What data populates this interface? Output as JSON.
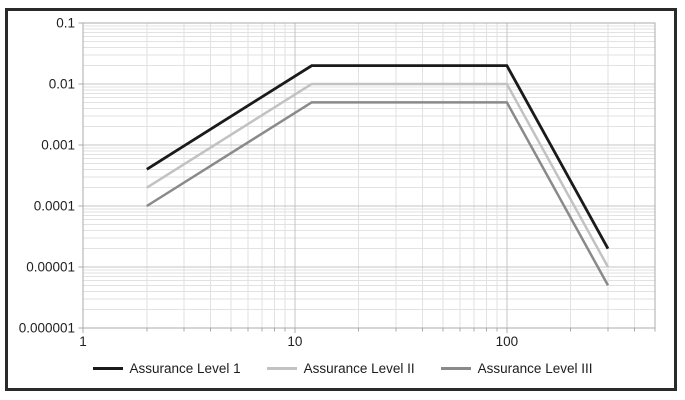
{
  "chart_data": {
    "type": "line",
    "title": "",
    "xlabel": "",
    "ylabel": "",
    "x_scale": "log",
    "y_scale": "log",
    "xlim": [
      1,
      500
    ],
    "ylim": [
      1e-06,
      0.1
    ],
    "x_ticks": [
      1,
      10,
      100
    ],
    "x_tick_labels": [
      "1",
      "10",
      "100"
    ],
    "y_ticks": [
      0.1,
      0.01,
      0.001,
      0.0001,
      1e-05,
      1e-06
    ],
    "y_tick_labels": [
      "0.1",
      "0.01",
      "0.001",
      "0.0001",
      "0.00001",
      "0.000001"
    ],
    "grid": {
      "major": true,
      "minor": true
    },
    "legend_position": "bottom",
    "series": [
      {
        "name": "Assurance Level 1",
        "color": "#1a1a1a",
        "width": 2.8,
        "points": [
          [
            2,
            0.0004
          ],
          [
            12,
            0.02
          ],
          [
            100,
            0.02
          ],
          [
            300,
            2e-05
          ]
        ]
      },
      {
        "name": "Assurance Level II",
        "color": "#c2c2c2",
        "width": 2.5,
        "points": [
          [
            2,
            0.0002
          ],
          [
            12,
            0.01
          ],
          [
            100,
            0.01
          ],
          [
            300,
            1e-05
          ]
        ]
      },
      {
        "name": "Assurance Level III",
        "color": "#8a8a8a",
        "width": 2.5,
        "points": [
          [
            2,
            0.0001
          ],
          [
            12,
            0.005
          ],
          [
            100,
            0.005
          ],
          [
            300,
            5e-06
          ]
        ]
      }
    ]
  }
}
